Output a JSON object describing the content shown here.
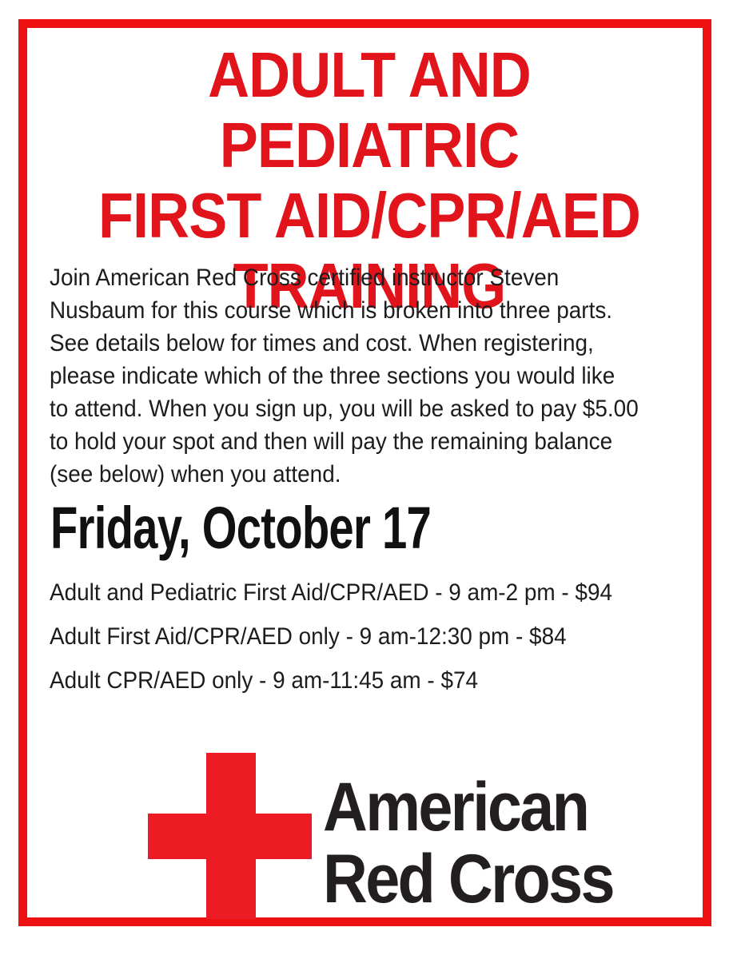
{
  "page": {
    "background_color": "#ffffff",
    "border_color": "#ee1111"
  },
  "flyer": {
    "title_lines": [
      "ADULT AND PEDIATRIC",
      "FIRST AID/CPR/AED",
      "TRAINING"
    ],
    "title_color": "#e2141b",
    "intro_lines": [
      "Join American Red Cross certified instructor Steven",
      "Nusbaum for this course which is broken into three parts.",
      "See details below for times and cost. When registering,",
      "please indicate which of the three sections you would like",
      "to attend. When you sign up, you will be asked to pay $5.00",
      "to hold your spot and then will pay the remaining balance",
      "(see below) when you attend."
    ],
    "date_heading": "Friday, October 17",
    "sessions": [
      {
        "text": "Adult and Pediatric First Aid/CPR/AED - 9 am-2 pm - $94"
      },
      {
        "text": "Adult First Aid/CPR/AED only - 9 am-12:30 pm - $84"
      },
      {
        "text": "Adult CPR/AED only - 9 am-11:45 am - $74"
      }
    ],
    "logo": {
      "org_name_lines": [
        "American",
        "Red Cross"
      ],
      "cross_color": "#ed1c24",
      "text_color": "#231f20"
    }
  }
}
